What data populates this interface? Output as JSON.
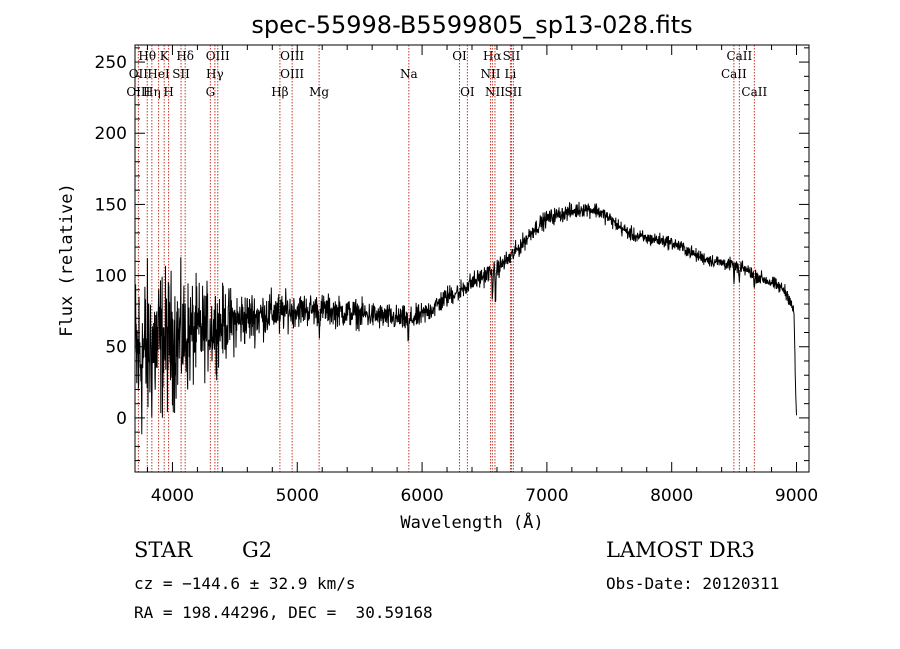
{
  "chart_data": {
    "type": "line",
    "title": "spec-55998-B5599805_sp13-028.fits",
    "xlabel": "Wavelength (Å)",
    "ylabel": "Flux (relative)",
    "xlim": [
      3700,
      9100
    ],
    "ylim": [
      -38,
      262
    ],
    "xticks": [
      4000,
      5000,
      6000,
      7000,
      8000,
      9000
    ],
    "yticks": [
      0,
      50,
      100,
      150,
      200,
      250
    ],
    "grid": false,
    "series": [
      {
        "name": "flux",
        "continuum": [
          [
            3700,
            40
          ],
          [
            3800,
            48
          ],
          [
            3900,
            52
          ],
          [
            4000,
            55
          ],
          [
            4100,
            57
          ],
          [
            4200,
            60
          ],
          [
            4300,
            63
          ],
          [
            4400,
            66
          ],
          [
            4500,
            68
          ],
          [
            4600,
            70
          ],
          [
            4700,
            72
          ],
          [
            4800,
            74
          ],
          [
            4900,
            75
          ],
          [
            5000,
            76
          ],
          [
            5100,
            76
          ],
          [
            5200,
            76
          ],
          [
            5300,
            75
          ],
          [
            5400,
            74
          ],
          [
            5500,
            73
          ],
          [
            5600,
            72
          ],
          [
            5700,
            71
          ],
          [
            5800,
            70
          ],
          [
            5900,
            69
          ],
          [
            6000,
            72
          ],
          [
            6100,
            78
          ],
          [
            6200,
            85
          ],
          [
            6300,
            90
          ],
          [
            6400,
            95
          ],
          [
            6500,
            100
          ],
          [
            6600,
            105
          ],
          [
            6700,
            112
          ],
          [
            6800,
            122
          ],
          [
            6900,
            133
          ],
          [
            7000,
            140
          ],
          [
            7100,
            143
          ],
          [
            7200,
            145
          ],
          [
            7300,
            147
          ],
          [
            7400,
            146
          ],
          [
            7500,
            140
          ],
          [
            7600,
            133
          ],
          [
            7700,
            128
          ],
          [
            7800,
            126
          ],
          [
            7900,
            125
          ],
          [
            8000,
            123
          ],
          [
            8100,
            119
          ],
          [
            8200,
            114
          ],
          [
            8300,
            111
          ],
          [
            8400,
            109
          ],
          [
            8500,
            107
          ],
          [
            8600,
            104
          ],
          [
            8700,
            99
          ],
          [
            8800,
            95
          ],
          [
            8900,
            90
          ],
          [
            8950,
            83
          ],
          [
            8980,
            73
          ],
          [
            8990,
            30
          ],
          [
            9000,
            0
          ]
        ],
        "absorption": [
          [
            4861,
            12
          ],
          [
            5175,
            12
          ],
          [
            5890,
            18
          ],
          [
            6300,
            8
          ],
          [
            6563,
            15
          ],
          [
            6587,
            22
          ],
          [
            8500,
            8
          ],
          [
            8542,
            10
          ],
          [
            8662,
            10
          ]
        ],
        "noise": [
          [
            3700,
            55
          ],
          [
            4000,
            40
          ],
          [
            4300,
            25
          ],
          [
            4600,
            16
          ],
          [
            5000,
            10
          ],
          [
            6000,
            7
          ],
          [
            7000,
            5
          ],
          [
            8000,
            4
          ],
          [
            9000,
            4
          ]
        ]
      }
    ],
    "lines": [
      {
        "label": "Hθ",
        "wavelength": 3798,
        "row": 0
      },
      {
        "label": "OII",
        "wavelength": 3727,
        "row": 1
      },
      {
        "label": "OIII",
        "wavelength": 3727,
        "row": 2
      },
      {
        "label": "K",
        "wavelength": 3934,
        "row": 0
      },
      {
        "label": "Hη",
        "wavelength": 3835,
        "row": 2
      },
      {
        "label": "HeI",
        "wavelength": 3889,
        "row": 1
      },
      {
        "label": "H",
        "wavelength": 3969,
        "row": 2
      },
      {
        "label": "SII",
        "wavelength": 4069,
        "row": 1
      },
      {
        "label": "Hδ",
        "wavelength": 4102,
        "row": 0
      },
      {
        "label": "OIII",
        "wavelength": 4363,
        "row": 0
      },
      {
        "label": "Hγ",
        "wavelength": 4340,
        "row": 1
      },
      {
        "label": "G",
        "wavelength": 4304,
        "row": 2
      },
      {
        "label": "Hβ",
        "wavelength": 4861,
        "row": 2
      },
      {
        "label": "OIII",
        "wavelength": 4959,
        "row": 0
      },
      {
        "label": "OIII",
        "wavelength": 4959,
        "row": 1
      },
      {
        "label": "Mg",
        "wavelength": 5175,
        "row": 2
      },
      {
        "label": "Na",
        "wavelength": 5894,
        "row": 1
      },
      {
        "label": "OI",
        "wavelength": 6300,
        "row": 0
      },
      {
        "label": "OI",
        "wavelength": 6363,
        "row": 2
      },
      {
        "label": "Hα",
        "wavelength": 6563,
        "row": 0
      },
      {
        "label": "NII",
        "wavelength": 6548,
        "row": 1
      },
      {
        "label": "NII",
        "wavelength": 6584,
        "row": 2
      },
      {
        "label": "SII",
        "wavelength": 6716,
        "row": 0
      },
      {
        "label": "Li",
        "wavelength": 6708,
        "row": 1
      },
      {
        "label": "SII",
        "wavelength": 6731,
        "row": 2
      },
      {
        "label": "CaII",
        "wavelength": 8542,
        "row": 0
      },
      {
        "label": "CaII",
        "wavelength": 8498,
        "row": 1
      },
      {
        "label": "CaII",
        "wavelength": 8662,
        "row": 2
      }
    ],
    "line_color": "#c0392b"
  },
  "info": {
    "class": "STAR",
    "subclass": "G2",
    "survey": "LAMOST DR3",
    "cz": "cz = −144.6 ± 32.9 km/s",
    "obs_date": "Obs-Date: 20120311",
    "coords": "RA = 198.44296, DEC =  30.59168"
  }
}
